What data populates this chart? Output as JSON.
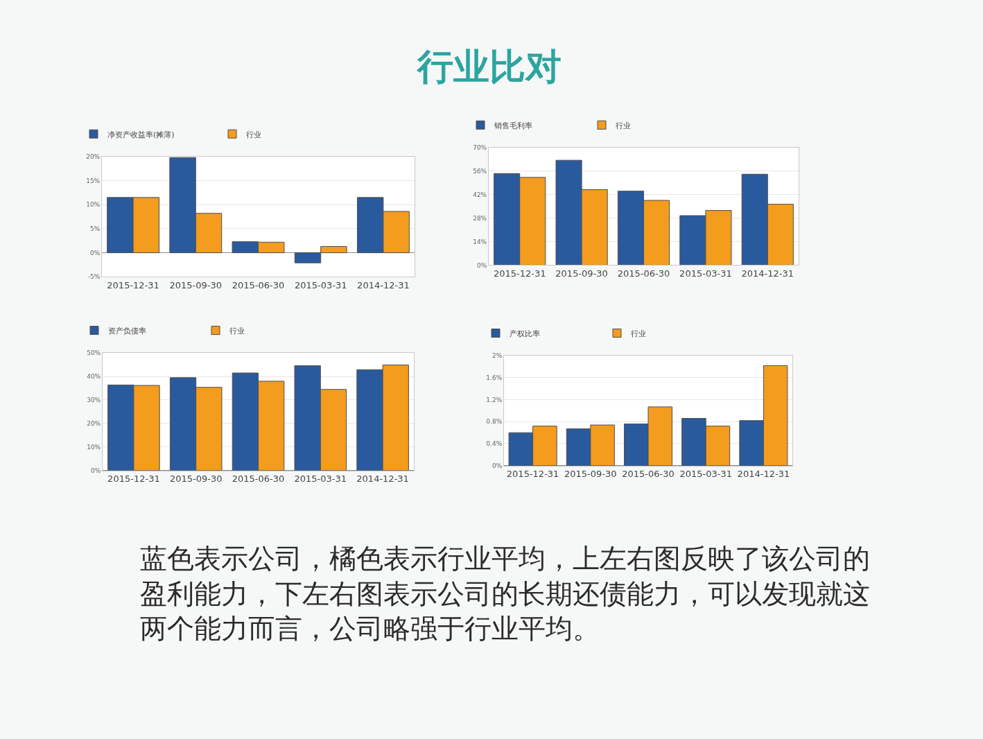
{
  "chart_data": [
    {
      "type": "other",
      "title": "行业比对"
    },
    {
      "type": "bar",
      "categories": [
        "2015-12-31",
        "2015-09-30",
        "2015-06-30",
        "2015-03-31",
        "2014-12-31"
      ],
      "series": [
        {
          "name": "净资产收益率(摊薄)",
          "color": "#2a5a9e",
          "values": [
            11.5,
            19.8,
            2.3,
            -2.1,
            11.5
          ]
        },
        {
          "name": "行业",
          "color": "#f39c1e",
          "values": [
            11.5,
            8.2,
            2.2,
            1.3,
            8.6
          ]
        }
      ],
      "ylim": [
        -5,
        20
      ],
      "yticks": [
        {
          "value": -5,
          "label": "-5%"
        },
        {
          "value": 0,
          "label": "0%"
        },
        {
          "value": 5,
          "label": "5%"
        },
        {
          "value": 10,
          "label": "10%"
        },
        {
          "value": 15,
          "label": "15%"
        },
        {
          "value": 20,
          "label": "20%"
        }
      ],
      "grid": "y",
      "legend": "top left"
    },
    {
      "type": "bar",
      "categories": [
        "2015-12-31",
        "2015-09-30",
        "2015-06-30",
        "2015-03-31",
        "2014-12-31"
      ],
      "series": [
        {
          "name": "销售毛利率",
          "color": "#2a5a9e",
          "values": [
            54.6,
            62.5,
            44.1,
            29.5,
            54.2
          ]
        },
        {
          "name": "行业",
          "color": "#f39c1e",
          "values": [
            52.3,
            45.0,
            38.6,
            32.6,
            36.3
          ]
        }
      ],
      "ylim": [
        0,
        70
      ],
      "yticks": [
        {
          "value": 0,
          "label": "0%"
        },
        {
          "value": 14,
          "label": "14%"
        },
        {
          "value": 28,
          "label": "28%"
        },
        {
          "value": 42,
          "label": "42%"
        },
        {
          "value": 56,
          "label": "56%"
        },
        {
          "value": 70,
          "label": "70%"
        }
      ],
      "grid": "y",
      "legend": "top left"
    },
    {
      "type": "bar",
      "categories": [
        "2015-12-31",
        "2015-09-30",
        "2015-06-30",
        "2015-03-31",
        "2014-12-31"
      ],
      "series": [
        {
          "name": "资产负债率",
          "color": "#2a5a9e",
          "values": [
            36.4,
            39.5,
            41.5,
            44.6,
            42.9
          ]
        },
        {
          "name": "行业",
          "color": "#f39c1e",
          "values": [
            36.2,
            35.4,
            38.0,
            34.5,
            44.9
          ]
        }
      ],
      "ylim": [
        0,
        50
      ],
      "yticks": [
        {
          "value": 0,
          "label": "0%"
        },
        {
          "value": 10,
          "label": "10%"
        },
        {
          "value": 20,
          "label": "20%"
        },
        {
          "value": 30,
          "label": "30%"
        },
        {
          "value": 40,
          "label": "40%"
        },
        {
          "value": 50,
          "label": "50%"
        }
      ],
      "grid": "y",
      "legend": "top left"
    },
    {
      "type": "bar",
      "categories": [
        "2015-12-31",
        "2015-09-30",
        "2015-06-30",
        "2015-03-31",
        "2014-12-31"
      ],
      "series": [
        {
          "name": "产权比率",
          "color": "#2a5a9e",
          "values": [
            0.6,
            0.67,
            0.76,
            0.86,
            0.82
          ]
        },
        {
          "name": "行业",
          "color": "#f39c1e",
          "values": [
            0.72,
            0.74,
            1.07,
            0.72,
            1.82
          ]
        }
      ],
      "ylim": [
        0,
        2
      ],
      "yticks": [
        {
          "value": 0,
          "label": "0%"
        },
        {
          "value": 0.4,
          "label": "0.4%"
        },
        {
          "value": 0.8,
          "label": "0.8%"
        },
        {
          "value": 1.2,
          "label": "1.2%"
        },
        {
          "value": 1.6,
          "label": "1.6%"
        },
        {
          "value": 2,
          "label": "2%"
        }
      ],
      "grid": "y",
      "legend": "top left"
    },
    {
      "type": "other",
      "annotations": [
        "蓝色表示公司，橘色表示行业平均，上左右图反映了该公司的盈利能力，下左右图表示公司的长期还债能力，可以发现就这两个能力而言，公司略强于行业平均。"
      ]
    }
  ]
}
